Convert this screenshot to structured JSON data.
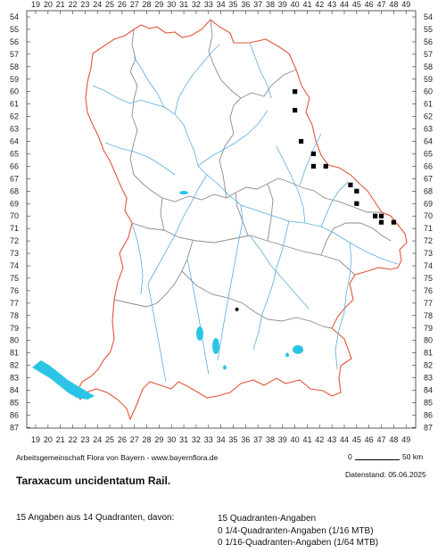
{
  "map": {
    "columns": [
      "19",
      "20",
      "21",
      "22",
      "23",
      "24",
      "25",
      "26",
      "27",
      "28",
      "29",
      "30",
      "31",
      "32",
      "33",
      "34",
      "35",
      "36",
      "37",
      "38",
      "39",
      "40",
      "41",
      "42",
      "43",
      "44",
      "45",
      "46",
      "47",
      "48",
      "49"
    ],
    "rows": [
      "54",
      "55",
      "56",
      "57",
      "58",
      "59",
      "60",
      "61",
      "62",
      "63",
      "64",
      "65",
      "66",
      "67",
      "68",
      "69",
      "70",
      "71",
      "72",
      "73",
      "74",
      "75",
      "76",
      "77",
      "78",
      "79",
      "80",
      "81",
      "82",
      "83",
      "84",
      "85",
      "86",
      "87"
    ],
    "quadrant_records": [
      {
        "col": 40,
        "row": 60
      },
      {
        "col": 40,
        "row": 61.5
      },
      {
        "col": 40.5,
        "row": 64
      },
      {
        "col": 41.5,
        "row": 65
      },
      {
        "col": 41.5,
        "row": 66
      },
      {
        "col": 42.5,
        "row": 66
      },
      {
        "col": 44.5,
        "row": 67.5
      },
      {
        "col": 45,
        "row": 68
      },
      {
        "col": 45,
        "row": 69
      },
      {
        "col": 46.5,
        "row": 70
      },
      {
        "col": 47,
        "row": 70
      },
      {
        "col": 47,
        "row": 70.5
      },
      {
        "col": 48,
        "row": 70.5
      }
    ],
    "point_records": [
      {
        "col": 35.3,
        "row": 77.5
      }
    ],
    "colors": {
      "border": "#e2553a",
      "districts": "#8a8a8a",
      "rivers": "#5aaee0",
      "lakes": "#2cc4e6",
      "records": "#000000"
    }
  },
  "footer": {
    "credit": "Arbeitsgemeinschaft Flora von Bayern - www.bayernflora.de",
    "scale_zero": "0",
    "scale_km": "50 km",
    "date": "Datenstand: 05.06.2025",
    "taxon": "Taraxacum uncidentatum Rail.",
    "summary": "15 Angaben aus 14 Quadranten, davon:",
    "stat_quadrant": "15 Quadranten-Angaben",
    "stat_quarter": "0 1/4-Quadranten-Angaben (1/16 MTB)",
    "stat_sixteenth": "0 1/16-Quadranten-Angaben (1/64 MTB)"
  }
}
